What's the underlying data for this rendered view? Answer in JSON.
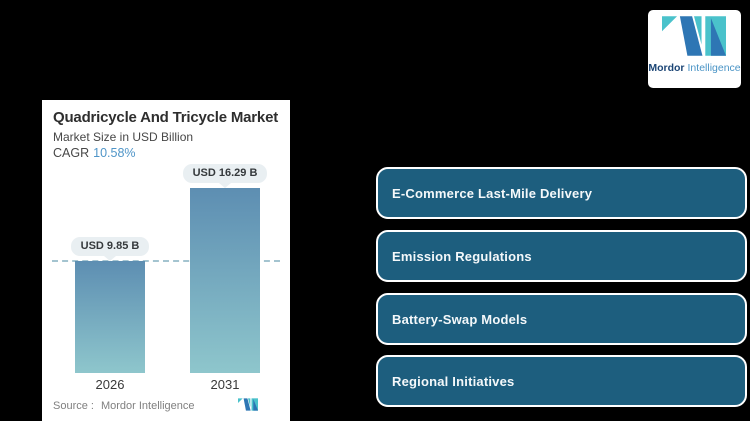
{
  "background_color": "#000000",
  "brand": {
    "name_bold": "Mordor",
    "name_light": "Intelligence",
    "teal": "#4ac2cb",
    "blue": "#2e76b4",
    "navy_text_color": "#1b4575",
    "light_text_color": "#4a94c6"
  },
  "chart_card": {
    "title": "Quadricycle And Tricycle Market",
    "subtitle": "Market Size in USD Billion",
    "cagr_label": "CAGR",
    "cagr_value": "10.58%",
    "cagr_value_color": "#4f95c8",
    "source_label": "Source :",
    "source_value": "Mordor Intelligence"
  },
  "chart_data": {
    "type": "bar",
    "title": "Quadricycle And Tricycle Market",
    "subtitle": "Market Size in USD Billion",
    "unit": "USD Billion",
    "cagr_percent": 10.58,
    "categories": [
      "2026",
      "2031"
    ],
    "values": [
      9.85,
      16.29
    ],
    "value_labels": [
      "USD 9.85 B",
      "USD 16.29 B"
    ],
    "ylim": [
      0,
      16.29
    ],
    "grid": false,
    "legend": "none",
    "reference_line": {
      "at_value": 9.85,
      "style": "dashed",
      "color": "#a4c4d0"
    },
    "bar_gradient": [
      "#5d8eb2",
      "#8ec6cc"
    ]
  },
  "drivers": {
    "fill_color": "#1d5e7e",
    "border_color": "#ffffff",
    "items": [
      {
        "label": "E-Commerce Last-Mile Delivery"
      },
      {
        "label": "Emission Regulations"
      },
      {
        "label": "Battery-Swap Models"
      },
      {
        "label": "Regional Initiatives"
      }
    ]
  }
}
